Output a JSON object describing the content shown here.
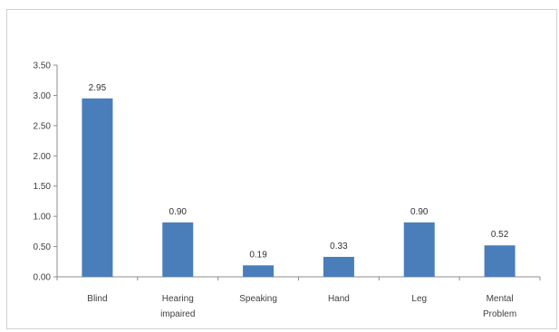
{
  "chart_data": {
    "type": "bar",
    "categories": [
      [
        "Blind"
      ],
      [
        "Hearing",
        "impaired"
      ],
      [
        "Speaking"
      ],
      [
        "Hand"
      ],
      [
        "Leg"
      ],
      [
        "Mental",
        "Problem"
      ]
    ],
    "values": [
      2.95,
      0.9,
      0.19,
      0.33,
      0.9,
      0.52
    ],
    "data_labels": [
      "2.95",
      "0.90",
      "0.19",
      "0.33",
      "0.90",
      "0.52"
    ],
    "yticks": [
      "0.00",
      "0.50",
      "1.00",
      "1.50",
      "2.00",
      "2.50",
      "3.00",
      "3.50"
    ],
    "ylim": [
      0,
      3.5
    ],
    "grid": false,
    "legend": "none",
    "bar_color": "#4a7ebb",
    "title": "",
    "xlabel": "",
    "ylabel": ""
  }
}
